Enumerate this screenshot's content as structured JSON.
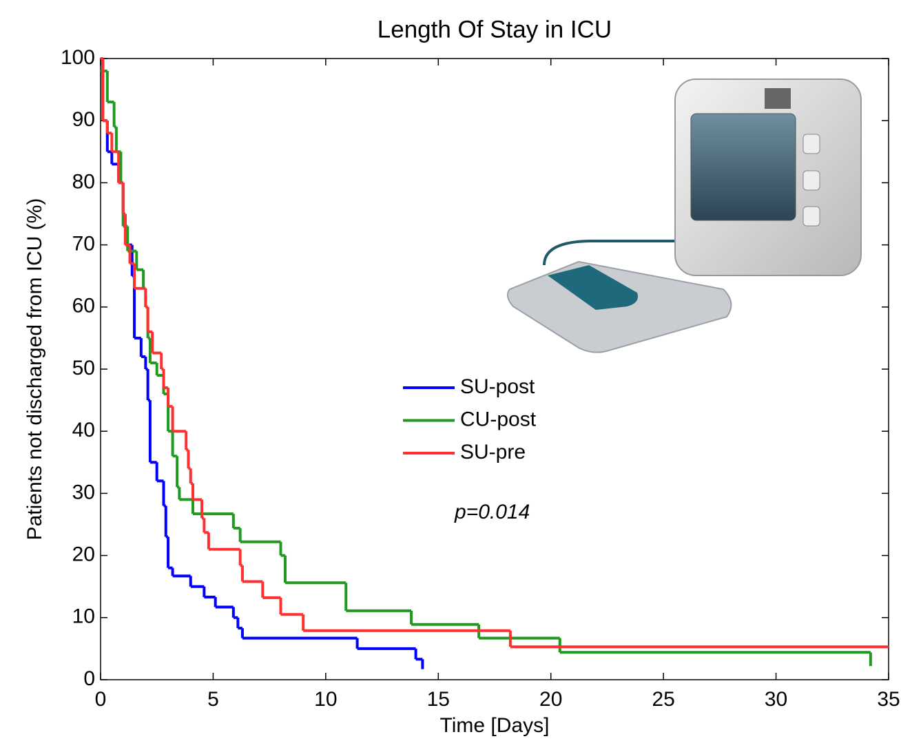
{
  "chart_data": {
    "type": "step",
    "title": "Length Of Stay in ICU",
    "xlabel": "Time [Days]",
    "ylabel": "Patients not discharged from ICU (%)",
    "xlim": [
      0,
      35
    ],
    "ylim": [
      0,
      100
    ],
    "xticks": [
      0,
      5,
      10,
      15,
      20,
      25,
      30,
      35
    ],
    "yticks": [
      0,
      10,
      20,
      30,
      40,
      50,
      60,
      70,
      80,
      90,
      100
    ],
    "annotation": "p=0.014",
    "series": [
      {
        "name": "SU-post",
        "color": "#0000ff",
        "x": [
          0,
          0.1,
          0.3,
          0.5,
          0.8,
          1.0,
          1.1,
          1.4,
          1.5,
          1.8,
          2.0,
          2.1,
          2.2,
          2.5,
          2.8,
          2.9,
          3.0,
          3.2,
          4.0,
          4.6,
          5.1,
          5.9,
          6.1,
          6.3,
          11.4,
          14.0,
          14.3
        ],
        "values": [
          100,
          90,
          85,
          83,
          80,
          75,
          70,
          65,
          55,
          52,
          50,
          45,
          35,
          32,
          28,
          23,
          18,
          16.7,
          15,
          13.3,
          11.7,
          10,
          8.3,
          6.7,
          5,
          3.3,
          1.7
        ]
      },
      {
        "name": "CU-post",
        "color": "#1f9a1f",
        "x": [
          0,
          0.3,
          0.6,
          0.7,
          0.9,
          1.0,
          1.2,
          1.6,
          1.9,
          2.0,
          2.1,
          2.2,
          2.5,
          2.8,
          3.0,
          3.2,
          3.4,
          3.5,
          4.1,
          5.9,
          6.2,
          8.0,
          8.2,
          10.9,
          13.8,
          16.8,
          20.4,
          34.2
        ],
        "values": [
          98,
          93,
          89,
          85,
          80,
          73,
          69,
          66,
          63,
          60,
          55,
          51,
          49,
          46,
          40,
          36,
          31,
          29,
          26.7,
          24.4,
          22.2,
          20,
          15.6,
          11.1,
          8.9,
          6.7,
          4.4,
          2.2
        ]
      },
      {
        "name": "SU-pre",
        "color": "#ff3030",
        "x": [
          0,
          0.1,
          0.3,
          0.5,
          0.8,
          1.0,
          1.1,
          1.3,
          1.5,
          2.0,
          2.1,
          2.3,
          2.7,
          2.8,
          3.0,
          3.2,
          3.8,
          3.9,
          4.0,
          4.1,
          4.5,
          4.6,
          4.8,
          6.2,
          6.3,
          7.2,
          8.0,
          9.0,
          18.2,
          35
        ],
        "values": [
          100,
          90,
          88,
          85,
          80,
          75,
          70,
          67,
          63,
          60,
          56,
          52.6,
          50,
          47,
          44,
          40,
          37,
          34,
          31.6,
          29,
          26,
          23.7,
          21,
          18.4,
          15.8,
          13.2,
          10.5,
          7.9,
          5.3,
          5.3
        ]
      }
    ]
  }
}
